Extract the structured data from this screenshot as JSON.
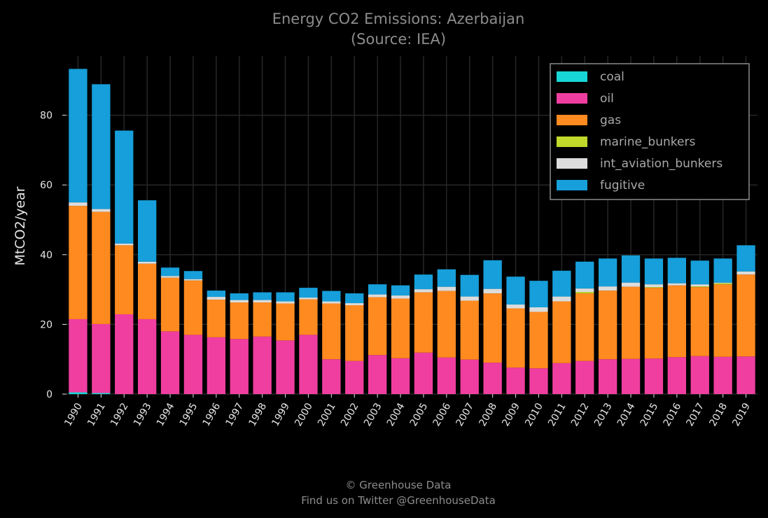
{
  "chart_data": {
    "type": "bar",
    "stacked": true,
    "title": "Energy CO2 Emissions: Azerbaijan",
    "subtitle": "(Source: IEA)",
    "ylabel": "MtCO2/year",
    "xlabel": "",
    "ylim": [
      0,
      97
    ],
    "yticks": [
      0,
      20,
      40,
      60,
      80
    ],
    "grid": true,
    "legend_position": "top-right",
    "categories": [
      "1990",
      "1991",
      "1992",
      "1993",
      "1994",
      "1995",
      "1996",
      "1997",
      "1998",
      "1999",
      "2000",
      "2001",
      "2002",
      "2003",
      "2004",
      "2005",
      "2006",
      "2007",
      "2008",
      "2009",
      "2010",
      "2011",
      "2012",
      "2013",
      "2014",
      "2015",
      "2016",
      "2017",
      "2018",
      "2019"
    ],
    "series": [
      {
        "name": "coal",
        "color": "#17d6d6",
        "values": [
          0.5,
          0.3,
          0,
          0,
          0,
          0,
          0,
          0,
          0,
          0,
          0,
          0,
          0,
          0,
          0,
          0,
          0,
          0,
          0,
          0,
          0,
          0,
          0,
          0,
          0,
          0,
          0,
          0,
          0,
          0
        ]
      },
      {
        "name": "oil",
        "color": "#f03ea0",
        "values": [
          21.0,
          19.8,
          22.9,
          21.5,
          18.0,
          17.0,
          16.3,
          15.8,
          16.5,
          15.4,
          17.0,
          10.0,
          9.5,
          11.2,
          10.3,
          11.9,
          10.5,
          9.9,
          9.0,
          7.6,
          7.4,
          8.9,
          9.5,
          10.0,
          10.1,
          10.2,
          10.6,
          10.9,
          10.7,
          10.8
        ]
      },
      {
        "name": "gas",
        "color": "#ff8a1f",
        "values": [
          32.5,
          32.2,
          19.8,
          15.9,
          15.4,
          15.6,
          10.8,
          10.5,
          9.8,
          10.6,
          10.2,
          16.0,
          16.0,
          16.6,
          17.1,
          17.3,
          19.1,
          16.9,
          19.9,
          17.0,
          16.2,
          17.7,
          19.4,
          19.7,
          20.7,
          20.3,
          20.6,
          19.8,
          20.8,
          23.5
        ]
      },
      {
        "name": "marine_bunkers",
        "color": "#c0d92a",
        "values": [
          0,
          0,
          0,
          0,
          0,
          0,
          0,
          0,
          0,
          0,
          0,
          0,
          0,
          0,
          0,
          0,
          0,
          0,
          0,
          0,
          0,
          0,
          0.4,
          0,
          0,
          0.2,
          0,
          0.2,
          0.3,
          0
        ]
      },
      {
        "name": "int_aviation_bunkers",
        "color": "#dcdcdc",
        "values": [
          1.0,
          0.8,
          0.5,
          0.6,
          0.5,
          0.4,
          0.8,
          0.7,
          0.7,
          0.6,
          0.5,
          0.6,
          0.6,
          0.8,
          0.9,
          0.9,
          1.2,
          1.2,
          1.3,
          1.1,
          1.3,
          1.4,
          1.0,
          1.2,
          1.2,
          0.8,
          0.6,
          0.6,
          0.2,
          0.9
        ]
      },
      {
        "name": "fugitive",
        "color": "#169fda",
        "values": [
          38.3,
          35.8,
          32.4,
          17.6,
          2.4,
          2.3,
          1.8,
          1.9,
          2.2,
          2.6,
          2.8,
          3.0,
          2.8,
          2.9,
          2.9,
          4.2,
          5.0,
          6.2,
          8.2,
          8.0,
          7.6,
          7.4,
          7.7,
          8.0,
          7.8,
          7.4,
          7.3,
          6.8,
          6.9,
          7.5
        ]
      }
    ]
  },
  "footer": {
    "line1": "© Greenhouse Data",
    "line2": "Find us on Twitter @GreenhouseData"
  }
}
